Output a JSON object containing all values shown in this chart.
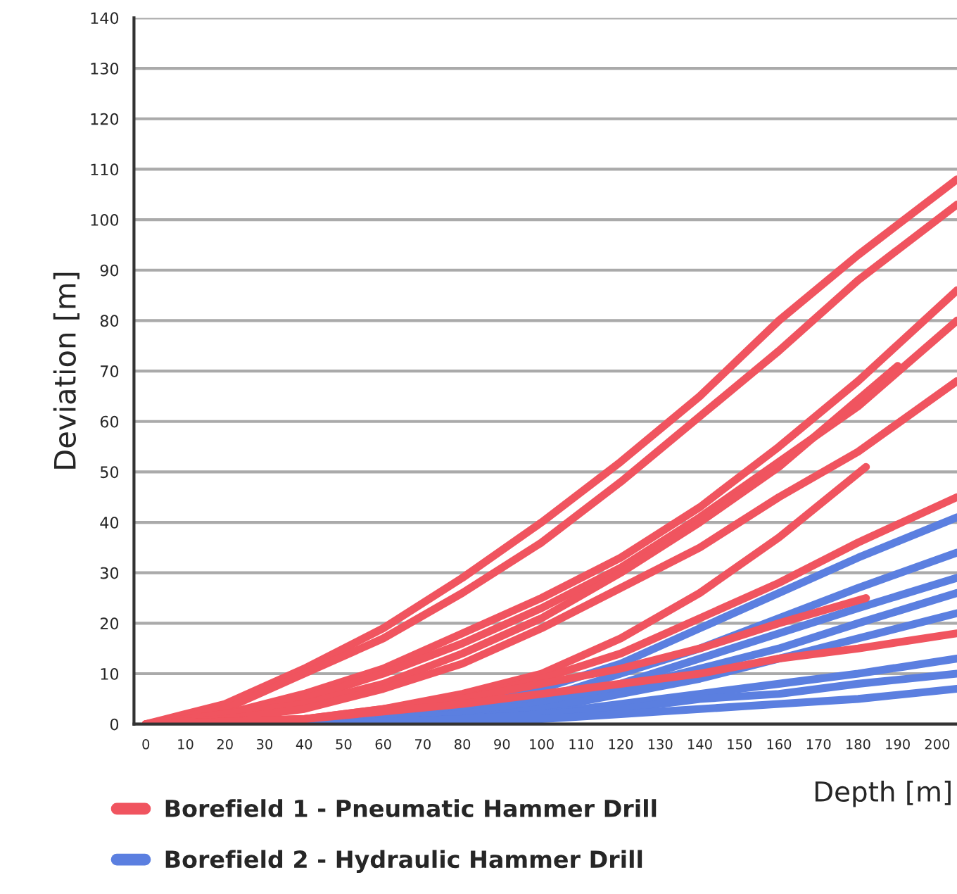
{
  "chart_data": {
    "type": "line",
    "xlabel": "Depth [m]",
    "ylabel": "Deviation [m]",
    "xlim": [
      -3,
      205
    ],
    "ylim": [
      0,
      140
    ],
    "xticks": [
      0,
      10,
      20,
      30,
      40,
      50,
      60,
      70,
      80,
      90,
      100,
      110,
      120,
      130,
      140,
      150,
      160,
      170,
      180,
      190,
      200
    ],
    "yticks": [
      0,
      10,
      20,
      30,
      40,
      50,
      60,
      70,
      80,
      90,
      100,
      110,
      120,
      130,
      140
    ],
    "grid": "y",
    "legend": "bottom left",
    "marker": "none",
    "line_style": "solid",
    "series": [
      {
        "name": "Borefield 1 - Pneumatic Hammer Drill",
        "color": "#f0545f",
        "x": [
          0,
          20,
          40,
          60,
          80,
          100,
          120,
          140,
          160,
          180,
          205
        ],
        "values": [
          0,
          4,
          11,
          19,
          29,
          40,
          52,
          65,
          80,
          93,
          108
        ]
      },
      {
        "color": "#f0545f",
        "x": [
          0,
          20,
          40,
          60,
          80,
          100,
          120,
          140,
          160,
          180,
          205
        ],
        "values": [
          0,
          3,
          10,
          17,
          26,
          36,
          48,
          61,
          74,
          88,
          103
        ]
      },
      {
        "color": "#f0545f",
        "x": [
          0,
          20,
          40,
          60,
          80,
          100,
          120,
          140,
          160,
          180,
          205
        ],
        "values": [
          0,
          2,
          6,
          11,
          18,
          25,
          33,
          43,
          55,
          68,
          86
        ]
      },
      {
        "color": "#f0545f",
        "x": [
          0,
          20,
          40,
          60,
          80,
          100,
          120,
          140,
          160,
          180,
          205
        ],
        "values": [
          0,
          2,
          5,
          10,
          16,
          23,
          31,
          41,
          52,
          63,
          80
        ]
      },
      {
        "color": "#f0545f",
        "x": [
          0,
          20,
          40,
          60,
          80,
          100,
          120,
          140,
          160,
          190
        ],
        "values": [
          0,
          2,
          4,
          8,
          14,
          21,
          30,
          40,
          51,
          71
        ]
      },
      {
        "color": "#f0545f",
        "x": [
          0,
          20,
          40,
          60,
          80,
          100,
          120,
          140,
          160,
          180,
          205
        ],
        "values": [
          0,
          1,
          3,
          7,
          12,
          19,
          27,
          35,
          45,
          54,
          68
        ]
      },
      {
        "color": "#f0545f",
        "x": [
          0,
          40,
          60,
          80,
          100,
          120,
          140,
          160,
          182
        ],
        "values": [
          0,
          1,
          3,
          6,
          10,
          17,
          26,
          37,
          51
        ]
      },
      {
        "color": "#f0545f",
        "x": [
          0,
          40,
          60,
          80,
          100,
          120,
          140,
          160,
          180,
          205
        ],
        "values": [
          0,
          1,
          2,
          5,
          9,
          14,
          21,
          28,
          36,
          45
        ]
      },
      {
        "name": "Borefield 2 - Hydraulic Hammer Drill",
        "color": "#5b7fe0",
        "x": [
          40,
          60,
          80,
          100,
          120,
          140,
          160,
          180,
          205
        ],
        "values": [
          0,
          1,
          3,
          7,
          12,
          19,
          26,
          33,
          41
        ]
      },
      {
        "color": "#5b7fe0",
        "x": [
          40,
          80,
          100,
          120,
          140,
          160,
          180,
          205
        ],
        "values": [
          0,
          2,
          5,
          10,
          15,
          21,
          27,
          34
        ]
      },
      {
        "color": "#5b7fe0",
        "x": [
          40,
          80,
          100,
          120,
          140,
          160,
          180,
          205
        ],
        "values": [
          0,
          2,
          4,
          8,
          13,
          18,
          23,
          29
        ]
      },
      {
        "color": "#5b7fe0",
        "x": [
          40,
          80,
          100,
          120,
          140,
          160,
          180,
          205
        ],
        "values": [
          0,
          2,
          4,
          7,
          11,
          15,
          20,
          26
        ]
      },
      {
        "color": "#5b7fe0",
        "x": [
          40,
          80,
          100,
          120,
          140,
          160,
          180,
          205
        ],
        "values": [
          0,
          1,
          3,
          6,
          9,
          13,
          17,
          22
        ]
      },
      {
        "color": "#5b7fe0",
        "x": [
          40,
          80,
          100,
          120,
          140,
          160,
          180,
          205
        ],
        "values": [
          0,
          1,
          2,
          4,
          6,
          8,
          10,
          13
        ]
      },
      {
        "color": "#5b7fe0",
        "x": [
          40,
          80,
          100,
          120,
          140,
          160,
          180,
          205
        ],
        "values": [
          0,
          1,
          2,
          3,
          5,
          6,
          8,
          10
        ]
      },
      {
        "color": "#5b7fe0",
        "x": [
          40,
          80,
          100,
          120,
          140,
          160,
          180,
          205
        ],
        "values": [
          0,
          1,
          1,
          2,
          3,
          4,
          5,
          7
        ]
      },
      {
        "color": "#f0545f",
        "x": [
          0,
          40,
          80,
          100,
          120,
          140,
          160,
          182
        ],
        "values": [
          0,
          1,
          5,
          8,
          11,
          15,
          20,
          25
        ]
      },
      {
        "color": "#f0545f",
        "x": [
          0,
          40,
          80,
          100,
          120,
          140,
          160,
          180,
          205
        ],
        "values": [
          0,
          1,
          4,
          6,
          8,
          10,
          13,
          15,
          18
        ]
      }
    ]
  }
}
